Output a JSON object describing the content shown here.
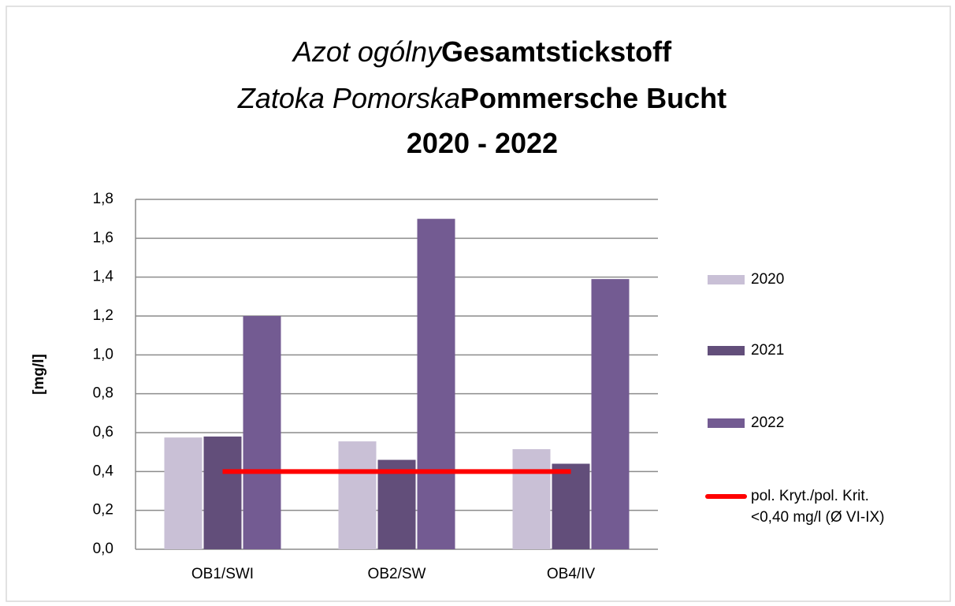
{
  "chart_data": {
    "type": "bar",
    "title_lines": [
      {
        "italic": "Azot ogólny",
        "regular": "Gesamtstickstoff"
      },
      {
        "italic": "Zatoka Pomorska",
        "regular": "Pommersche Bucht"
      },
      {
        "regular": "2020 - 2022"
      }
    ],
    "y_label": "[mg/l]",
    "categories": [
      "OB1/SWI",
      "OB2/SW",
      "OB4/IV"
    ],
    "series": [
      {
        "name": "2020",
        "color": "#c9c0d6",
        "values": [
          0.575,
          0.555,
          0.515
        ]
      },
      {
        "name": "2021",
        "color": "#624e7a",
        "values": [
          0.58,
          0.46,
          0.44
        ]
      },
      {
        "name": "2022",
        "color": "#735b92",
        "values": [
          1.2,
          1.7,
          1.39
        ]
      },
      {
        "name": "pol. Kryt./pol. Krit.\n<0,40 mg/l (Ø VI-IX)",
        "color": "#ff0000",
        "type": "line",
        "values": [
          0.4,
          0.4,
          0.4
        ]
      }
    ],
    "ylim": [
      0,
      1.8
    ],
    "yticks": [
      {
        "value": 0,
        "label": "0,0"
      },
      {
        "value": 0.2,
        "label": "0,2"
      },
      {
        "value": 0.4,
        "label": "0,4"
      },
      {
        "value": 0.6,
        "label": "0,6"
      },
      {
        "value": 0.8,
        "label": "0,8"
      },
      {
        "value": 1.0,
        "label": "1,0"
      },
      {
        "value": 1.2,
        "label": "1,2"
      },
      {
        "value": 1.4,
        "label": "1,4"
      },
      {
        "value": 1.6,
        "label": "1,6"
      },
      {
        "value": 1.8,
        "label": "1,8"
      }
    ],
    "grid": true
  }
}
